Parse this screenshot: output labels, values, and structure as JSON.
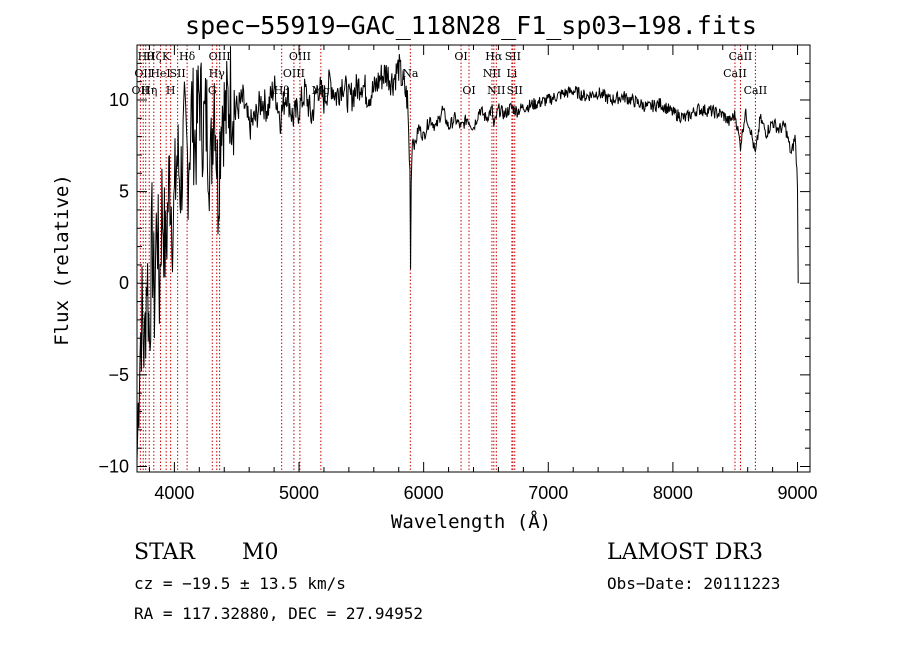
{
  "chart_data": {
    "type": "line",
    "title": "spec−55919−GAC_118N28_F1_sp03−198.fits",
    "xlabel": "Wavelength (Å)",
    "ylabel": "Flux (relative)",
    "xlim": [
      3700,
      9100
    ],
    "ylim": [
      -10.3,
      13.0
    ],
    "x_ticks": [
      4000,
      5000,
      6000,
      7000,
      8000,
      9000
    ],
    "y_ticks": [
      -10,
      -5,
      0,
      5,
      10
    ],
    "x_tick_labels": [
      "4000",
      "5000",
      "6000",
      "7000",
      "8000",
      "9000"
    ],
    "y_tick_labels": [
      "−10",
      "−5",
      "0",
      "5",
      "10"
    ],
    "series": [
      {
        "name": "spectrum",
        "x": [
          3700,
          3720,
          3740,
          3760,
          3780,
          3800,
          3820,
          3840,
          3860,
          3880,
          3900,
          3930,
          3960,
          3990,
          4020,
          4050,
          4080,
          4110,
          4140,
          4170,
          4200,
          4230,
          4260,
          4290,
          4320,
          4350,
          4380,
          4410,
          4450,
          4500,
          4550,
          4600,
          4650,
          4700,
          4750,
          4800,
          4850,
          4900,
          4950,
          5000,
          5050,
          5100,
          5150,
          5200,
          5250,
          5300,
          5350,
          5400,
          5450,
          5500,
          5550,
          5600,
          5650,
          5700,
          5750,
          5800,
          5850,
          5870,
          5890,
          5895,
          5900,
          5910,
          5930,
          5960,
          6000,
          6050,
          6100,
          6150,
          6200,
          6250,
          6300,
          6350,
          6400,
          6450,
          6500,
          6550,
          6563,
          6600,
          6650,
          6700,
          6750,
          6800,
          6900,
          7000,
          7100,
          7200,
          7300,
          7400,
          7500,
          7600,
          7700,
          7800,
          7900,
          8000,
          8100,
          8200,
          8300,
          8400,
          8450,
          8500,
          8542,
          8580,
          8620,
          8662,
          8700,
          8750,
          8800,
          8850,
          8900,
          8950,
          8980,
          9000,
          9005
        ],
        "values": [
          -9.8,
          -4.0,
          -1.5,
          -3.8,
          1.0,
          -3.0,
          2.5,
          -1.0,
          4.0,
          -0.5,
          4.5,
          1.5,
          6.0,
          3.0,
          7.0,
          5.5,
          8.0,
          6.5,
          9.5,
          7.5,
          10.5,
          8.5,
          9.0,
          6.0,
          11.0,
          5.0,
          10.0,
          9.0,
          10.5,
          9.5,
          10.0,
          8.5,
          9.0,
          10.0,
          9.5,
          10.8,
          9.0,
          10.5,
          9.0,
          9.5,
          10.5,
          9.0,
          10.8,
          10.0,
          11.0,
          10.2,
          11.0,
          10.0,
          10.5,
          11.0,
          10.3,
          10.5,
          11.2,
          11.5,
          11.0,
          11.8,
          10.5,
          10.0,
          6.0,
          1.5,
          5.5,
          8.0,
          7.5,
          8.5,
          8.0,
          9.0,
          8.5,
          9.5,
          8.5,
          9.0,
          8.5,
          9.0,
          8.5,
          9.5,
          9.0,
          9.5,
          8.5,
          9.5,
          9.2,
          9.6,
          9.4,
          9.6,
          9.8,
          10.0,
          10.3,
          10.5,
          10.2,
          10.4,
          10.0,
          10.2,
          9.9,
          9.6,
          9.8,
          9.3,
          9.0,
          9.5,
          9.4,
          9.2,
          8.8,
          9.2,
          7.5,
          9.3,
          8.5,
          7.0,
          9.0,
          8.2,
          8.8,
          8.4,
          8.6,
          7.0,
          8.0,
          5.5,
          0.0
        ]
      }
    ],
    "spectral_lines": [
      {
        "wavelength": 3727,
        "label": "OII",
        "row": 2
      },
      {
        "wavelength": 3750,
        "label": "OII",
        "row": 1
      },
      {
        "wavelength": 3770,
        "label": "Hθ",
        "row": 0
      },
      {
        "wavelength": 3798,
        "label": "Hη",
        "row": 2
      },
      {
        "wavelength": 3835,
        "label": "Hζ",
        "row": 0
      },
      {
        "wavelength": 3889,
        "label": "HeI",
        "row": 1
      },
      {
        "wavelength": 3934,
        "label": "K",
        "row": 0
      },
      {
        "wavelength": 3970,
        "label": "H",
        "row": 2
      },
      {
        "wavelength": 4026,
        "label": "SII",
        "row": 1
      },
      {
        "wavelength": 4102,
        "label": "Hδ",
        "row": 0
      },
      {
        "wavelength": 4304,
        "label": "G",
        "row": 2
      },
      {
        "wavelength": 4340,
        "label": "Hγ",
        "row": 1
      },
      {
        "wavelength": 4363,
        "label": "OIII",
        "row": 0
      },
      {
        "wavelength": 4861,
        "label": "Hβ",
        "row": 2
      },
      {
        "wavelength": 4959,
        "label": "OIII",
        "row": 1
      },
      {
        "wavelength": 5007,
        "label": "OIII",
        "row": 0
      },
      {
        "wavelength": 5175,
        "label": "Mg",
        "row": 2
      },
      {
        "wavelength": 5893,
        "label": "Na",
        "row": 1
      },
      {
        "wavelength": 6300,
        "label": "OI",
        "row": 0
      },
      {
        "wavelength": 6364,
        "label": "OI",
        "row": 2
      },
      {
        "wavelength": 6548,
        "label": "NII",
        "row": 1
      },
      {
        "wavelength": 6563,
        "label": "Hα",
        "row": 0
      },
      {
        "wavelength": 6583,
        "label": "NII",
        "row": 2
      },
      {
        "wavelength": 6708,
        "label": "Li",
        "row": 1
      },
      {
        "wavelength": 6716,
        "label": "SII",
        "row": 0
      },
      {
        "wavelength": 6731,
        "label": "SII",
        "row": 2
      },
      {
        "wavelength": 8498,
        "label": "CaII",
        "row": 1
      },
      {
        "wavelength": 8542,
        "label": "CaII",
        "row": 0
      },
      {
        "wavelength": 8662,
        "label": "CaII",
        "row": 2
      }
    ],
    "colors": {
      "spectrum": "#000000",
      "line_markers": "#cc0000",
      "axes": "#000000"
    }
  },
  "info": {
    "object_class": "STAR",
    "subclass": "M0",
    "survey": "LAMOST DR3",
    "redshift": "cz = −19.5 ± 13.5 km/s",
    "obs_date": "Obs−Date: 20111223",
    "coords": "RA = 117.32880, DEC =  27.94952"
  }
}
